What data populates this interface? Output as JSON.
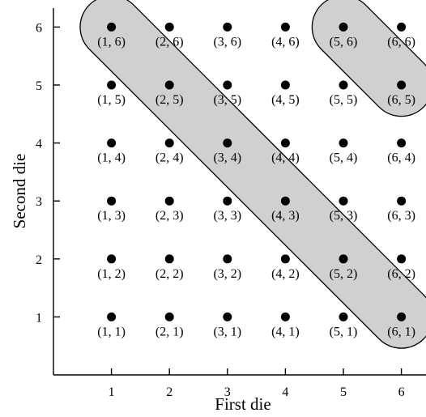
{
  "chart_data": {
    "type": "scatter",
    "xlabel": "First die",
    "ylabel": "Second die",
    "x_ticks": [
      1,
      2,
      3,
      4,
      5,
      6
    ],
    "y_ticks": [
      1,
      2,
      3,
      4,
      5,
      6
    ],
    "xlim": [
      0,
      6.4
    ],
    "ylim": [
      0,
      6.4
    ],
    "grid": false,
    "legend": "none",
    "points": [
      {
        "x": 1,
        "y": 6,
        "label": "(1, 6)"
      },
      {
        "x": 2,
        "y": 6,
        "label": "(2, 6)"
      },
      {
        "x": 3,
        "y": 6,
        "label": "(3, 6)"
      },
      {
        "x": 4,
        "y": 6,
        "label": "(4, 6)"
      },
      {
        "x": 5,
        "y": 6,
        "label": "(5, 6)"
      },
      {
        "x": 6,
        "y": 6,
        "label": "(6, 6)"
      },
      {
        "x": 1,
        "y": 5,
        "label": "(1, 5)"
      },
      {
        "x": 2,
        "y": 5,
        "label": "(2, 5)"
      },
      {
        "x": 3,
        "y": 5,
        "label": "(3, 5)"
      },
      {
        "x": 4,
        "y": 5,
        "label": "(4, 5)"
      },
      {
        "x": 5,
        "y": 5,
        "label": "(5, 5)"
      },
      {
        "x": 6,
        "y": 5,
        "label": "(6, 5)"
      },
      {
        "x": 1,
        "y": 4,
        "label": "(1, 4)"
      },
      {
        "x": 2,
        "y": 4,
        "label": "(2, 4)"
      },
      {
        "x": 3,
        "y": 4,
        "label": "(3, 4)"
      },
      {
        "x": 4,
        "y": 4,
        "label": "(4, 4)"
      },
      {
        "x": 5,
        "y": 4,
        "label": "(5, 4)"
      },
      {
        "x": 6,
        "y": 4,
        "label": "(6, 4)"
      },
      {
        "x": 1,
        "y": 3,
        "label": "(1, 3)"
      },
      {
        "x": 2,
        "y": 3,
        "label": "(2, 3)"
      },
      {
        "x": 3,
        "y": 3,
        "label": "(3, 3)"
      },
      {
        "x": 4,
        "y": 3,
        "label": "(4, 3)"
      },
      {
        "x": 5,
        "y": 3,
        "label": "(5, 3)"
      },
      {
        "x": 6,
        "y": 3,
        "label": "(6, 3)"
      },
      {
        "x": 1,
        "y": 2,
        "label": "(1, 2)"
      },
      {
        "x": 2,
        "y": 2,
        "label": "(2, 2)"
      },
      {
        "x": 3,
        "y": 2,
        "label": "(3, 2)"
      },
      {
        "x": 4,
        "y": 2,
        "label": "(4, 2)"
      },
      {
        "x": 5,
        "y": 2,
        "label": "(5, 2)"
      },
      {
        "x": 6,
        "y": 2,
        "label": "(6, 2)"
      },
      {
        "x": 1,
        "y": 1,
        "label": "(1, 1)"
      },
      {
        "x": 2,
        "y": 1,
        "label": "(2, 1)"
      },
      {
        "x": 3,
        "y": 1,
        "label": "(3, 1)"
      },
      {
        "x": 4,
        "y": 1,
        "label": "(4, 1)"
      },
      {
        "x": 5,
        "y": 1,
        "label": "(5, 1)"
      },
      {
        "x": 6,
        "y": 1,
        "label": "(6, 1)"
      }
    ],
    "highlighted_regions": [
      {
        "points": [
          [
            1,
            6
          ],
          [
            2,
            5
          ],
          [
            3,
            4
          ],
          [
            4,
            3
          ],
          [
            5,
            2
          ],
          [
            6,
            1
          ]
        ]
      },
      {
        "points": [
          [
            5,
            6
          ],
          [
            6,
            5
          ]
        ]
      }
    ],
    "colors": {
      "point": "#000000",
      "region_fill": "#d0d0d0",
      "region_stroke": "#000000",
      "axis": "#000000"
    }
  }
}
